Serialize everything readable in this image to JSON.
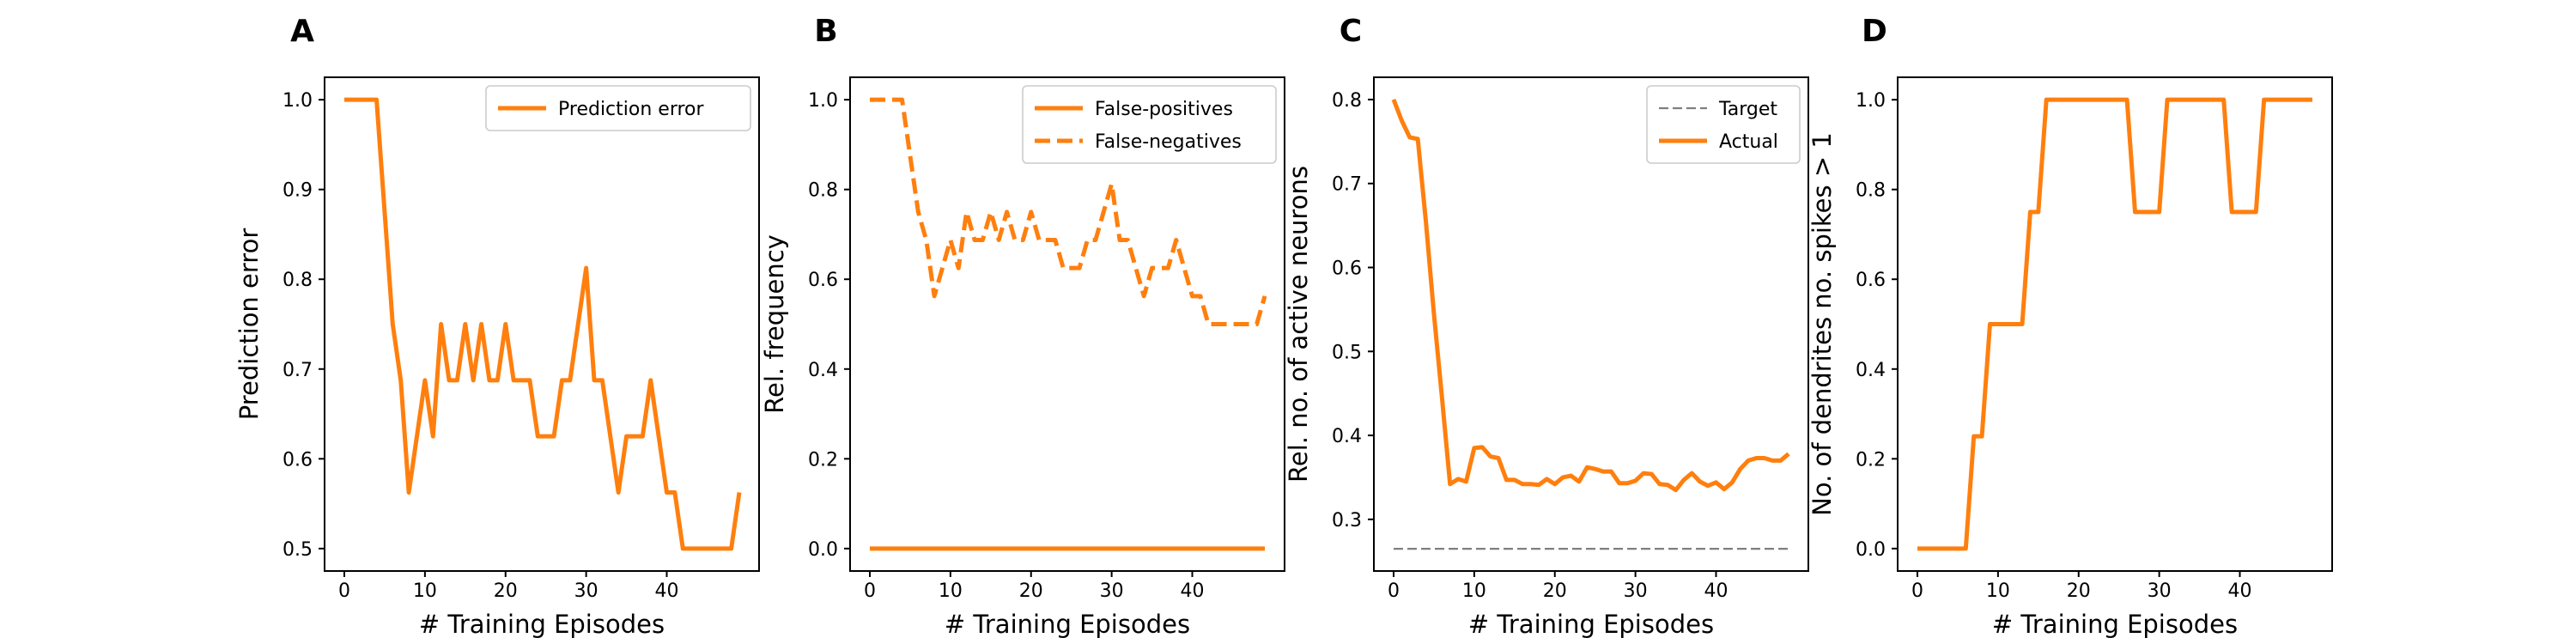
{
  "colors": {
    "orange": "#ff7f0e",
    "target_gray": "#7f7f7f"
  },
  "chart_data": [
    {
      "type": "line",
      "panel": "A",
      "xlabel": "# Training Episodes",
      "ylabel": "Prediction error",
      "xlim": [
        -2.45,
        51.45
      ],
      "ylim": [
        0.475,
        1.025
      ],
      "xticks": [
        0,
        10,
        20,
        30,
        40
      ],
      "yticks": [
        0.5,
        0.6,
        0.7,
        0.8,
        0.9,
        1.0
      ],
      "ytick_labels": [
        "0.5",
        "0.6",
        "0.7",
        "0.8",
        "0.9",
        "1.0"
      ],
      "legend_position": "upper right",
      "series": [
        {
          "name": "Prediction error",
          "style": "solid",
          "color": "#ff7f0e",
          "x": [
            0,
            1,
            2,
            3,
            4,
            5,
            6,
            7,
            8,
            9,
            10,
            11,
            12,
            13,
            14,
            15,
            16,
            17,
            18,
            19,
            20,
            21,
            22,
            23,
            24,
            25,
            26,
            27,
            28,
            29,
            30,
            31,
            32,
            33,
            34,
            35,
            36,
            37,
            38,
            39,
            40,
            41,
            42,
            43,
            44,
            45,
            46,
            47,
            48,
            49
          ],
          "y": [
            1.0,
            1.0,
            1.0,
            1.0,
            1.0,
            0.875,
            0.75,
            0.6875,
            0.5625,
            0.625,
            0.6875,
            0.625,
            0.75,
            0.6875,
            0.6875,
            0.75,
            0.6875,
            0.75,
            0.6875,
            0.6875,
            0.75,
            0.6875,
            0.6875,
            0.6875,
            0.625,
            0.625,
            0.625,
            0.6875,
            0.6875,
            0.75,
            0.8125,
            0.6875,
            0.6875,
            0.625,
            0.5625,
            0.625,
            0.625,
            0.625,
            0.6875,
            0.625,
            0.5625,
            0.5625,
            0.5,
            0.5,
            0.5,
            0.5,
            0.5,
            0.5,
            0.5,
            0.5625
          ]
        }
      ]
    },
    {
      "type": "line",
      "panel": "B",
      "xlabel": "# Training Episodes",
      "ylabel": "Rel. frequency",
      "xlim": [
        -2.45,
        51.45
      ],
      "ylim": [
        -0.05,
        1.05
      ],
      "xticks": [
        0,
        10,
        20,
        30,
        40
      ],
      "yticks": [
        0.0,
        0.2,
        0.4,
        0.6,
        0.8,
        1.0
      ],
      "ytick_labels": [
        "0.0",
        "0.2",
        "0.4",
        "0.6",
        "0.8",
        "1.0"
      ],
      "legend_position": "upper right",
      "series": [
        {
          "name": "False-positives",
          "style": "solid",
          "color": "#ff7f0e",
          "x": [
            0,
            49
          ],
          "y": [
            0.0,
            0.0
          ]
        },
        {
          "name": "False-negatives",
          "style": "dashed",
          "color": "#ff7f0e",
          "x": [
            0,
            1,
            2,
            3,
            4,
            5,
            6,
            7,
            8,
            9,
            10,
            11,
            12,
            13,
            14,
            15,
            16,
            17,
            18,
            19,
            20,
            21,
            22,
            23,
            24,
            25,
            26,
            27,
            28,
            29,
            30,
            31,
            32,
            33,
            34,
            35,
            36,
            37,
            38,
            39,
            40,
            41,
            42,
            43,
            44,
            45,
            46,
            47,
            48,
            49
          ],
          "y": [
            1.0,
            1.0,
            1.0,
            1.0,
            1.0,
            0.875,
            0.75,
            0.6875,
            0.5625,
            0.625,
            0.6875,
            0.625,
            0.75,
            0.6875,
            0.6875,
            0.75,
            0.6875,
            0.75,
            0.6875,
            0.6875,
            0.75,
            0.6875,
            0.6875,
            0.6875,
            0.625,
            0.625,
            0.625,
            0.6875,
            0.6875,
            0.75,
            0.8125,
            0.6875,
            0.6875,
            0.625,
            0.5625,
            0.625,
            0.625,
            0.625,
            0.6875,
            0.625,
            0.5625,
            0.5625,
            0.5,
            0.5,
            0.5,
            0.5,
            0.5,
            0.5,
            0.5,
            0.5625
          ]
        }
      ]
    },
    {
      "type": "line",
      "panel": "C",
      "xlabel": "# Training Episodes",
      "ylabel": "Rel. no. of active neurons",
      "xlim": [
        -2.45,
        51.45
      ],
      "ylim": [
        0.2385,
        0.8265
      ],
      "xticks": [
        0,
        10,
        20,
        30,
        40
      ],
      "yticks": [
        0.3,
        0.4,
        0.5,
        0.6,
        0.7,
        0.8
      ],
      "ytick_labels": [
        "0.3",
        "0.4",
        "0.5",
        "0.6",
        "0.7",
        "0.8"
      ],
      "legend_position": "upper right",
      "series": [
        {
          "name": "Target",
          "style": "dashed",
          "color": "#7f7f7f",
          "x": [
            0,
            49
          ],
          "y": [
            0.265,
            0.265
          ]
        },
        {
          "name": "Actual",
          "style": "solid",
          "color": "#ff7f0e",
          "x": [
            0,
            1,
            2,
            3,
            4,
            5,
            6,
            7,
            8,
            9,
            10,
            11,
            12,
            13,
            14,
            15,
            16,
            17,
            18,
            19,
            20,
            21,
            22,
            23,
            24,
            25,
            26,
            27,
            28,
            29,
            30,
            31,
            32,
            33,
            34,
            35,
            36,
            37,
            38,
            39,
            40,
            41,
            42,
            43,
            44,
            45,
            46,
            47,
            48,
            49
          ],
          "y": [
            0.8,
            0.775,
            0.755,
            0.753,
            0.655,
            0.545,
            0.445,
            0.342,
            0.348,
            0.345,
            0.385,
            0.386,
            0.375,
            0.373,
            0.347,
            0.347,
            0.342,
            0.342,
            0.341,
            0.348,
            0.342,
            0.35,
            0.352,
            0.345,
            0.362,
            0.36,
            0.357,
            0.357,
            0.343,
            0.343,
            0.346,
            0.355,
            0.354,
            0.342,
            0.341,
            0.335,
            0.347,
            0.355,
            0.345,
            0.34,
            0.344,
            0.336,
            0.344,
            0.36,
            0.37,
            0.373,
            0.373,
            0.37,
            0.37,
            0.378
          ]
        }
      ]
    },
    {
      "type": "line",
      "panel": "D",
      "xlabel": "# Training Episodes",
      "ylabel": "No. of dendrites no. spikes > 1",
      "xlim": [
        -2.45,
        51.45
      ],
      "ylim": [
        -0.05,
        1.05
      ],
      "xticks": [
        0,
        10,
        20,
        30,
        40
      ],
      "yticks": [
        0.0,
        0.2,
        0.4,
        0.6,
        0.8,
        1.0
      ],
      "ytick_labels": [
        "0.0",
        "0.2",
        "0.4",
        "0.6",
        "0.8",
        "1.0"
      ],
      "legend_position": "none",
      "series": [
        {
          "name": "",
          "style": "solid",
          "color": "#ff7f0e",
          "x": [
            0,
            1,
            2,
            3,
            4,
            5,
            6,
            7,
            8,
            9,
            10,
            11,
            12,
            13,
            14,
            15,
            16,
            17,
            18,
            19,
            20,
            21,
            22,
            23,
            24,
            25,
            26,
            27,
            28,
            29,
            30,
            31,
            32,
            33,
            34,
            35,
            36,
            37,
            38,
            39,
            40,
            41,
            42,
            43,
            44,
            45,
            46,
            47,
            48,
            49
          ],
          "y": [
            0.0,
            0.0,
            0.0,
            0.0,
            0.0,
            0.0,
            0.0,
            0.25,
            0.25,
            0.5,
            0.5,
            0.5,
            0.5,
            0.5,
            0.75,
            0.75,
            1.0,
            1.0,
            1.0,
            1.0,
            1.0,
            1.0,
            1.0,
            1.0,
            1.0,
            1.0,
            1.0,
            0.75,
            0.75,
            0.75,
            0.75,
            1.0,
            1.0,
            1.0,
            1.0,
            1.0,
            1.0,
            1.0,
            1.0,
            0.75,
            0.75,
            0.75,
            0.75,
            1.0,
            1.0,
            1.0,
            1.0,
            1.0,
            1.0,
            1.0
          ]
        }
      ]
    }
  ]
}
